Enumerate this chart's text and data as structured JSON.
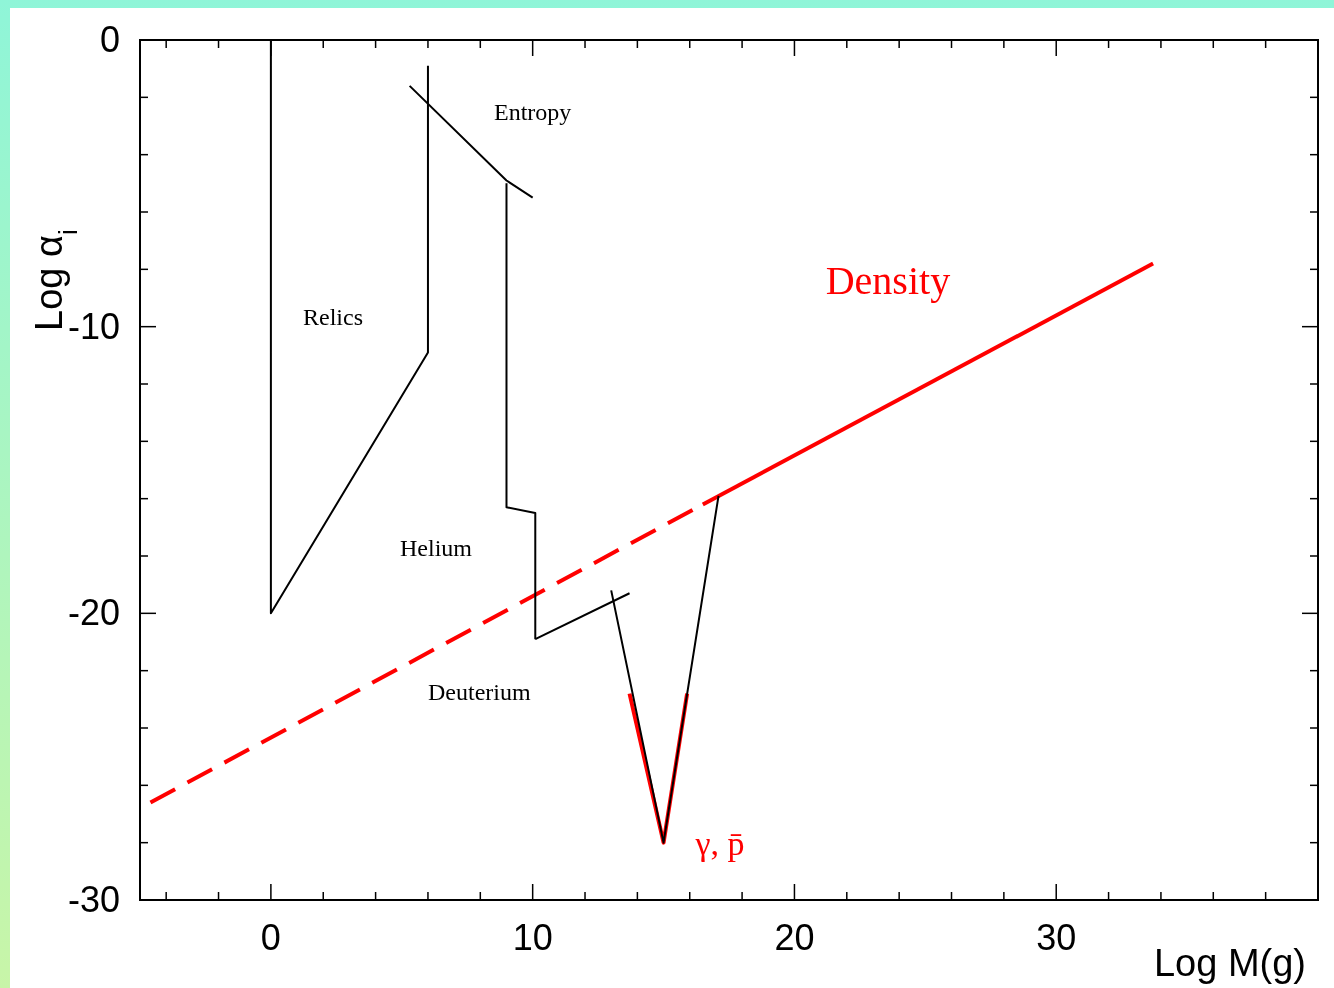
{
  "chart_data": {
    "type": "line",
    "xlabel": "Log M(g)",
    "ylabel": "Log α$_{i}$",
    "xlim": [
      -5,
      40
    ],
    "ylim": [
      -30,
      0
    ],
    "xticks": [
      {
        "value": -4,
        "label": null
      },
      {
        "value": -2,
        "label": null
      },
      0,
      {
        "value": 2,
        "label": null
      },
      {
        "value": 4,
        "label": null
      },
      {
        "value": 6,
        "label": null
      },
      {
        "value": 8,
        "label": null
      },
      10,
      {
        "value": 12,
        "label": null
      },
      {
        "value": 14,
        "label": null
      },
      {
        "value": 16,
        "label": null
      },
      {
        "value": 18,
        "label": null
      },
      20,
      {
        "value": 22,
        "label": null
      },
      {
        "value": 24,
        "label": null
      },
      {
        "value": 26,
        "label": null
      },
      {
        "value": 28,
        "label": null
      },
      30,
      {
        "value": 32,
        "label": null
      },
      {
        "value": 34,
        "label": null
      },
      {
        "value": 36,
        "label": null
      },
      {
        "value": 38,
        "label": null
      }
    ],
    "yticks": [
      0,
      {
        "value": -2,
        "label": null
      },
      {
        "value": -4,
        "label": null
      },
      {
        "value": -6,
        "label": null
      },
      {
        "value": -8,
        "label": null
      },
      -10,
      {
        "value": -12,
        "label": null
      },
      {
        "value": -14,
        "label": null
      },
      {
        "value": -16,
        "label": null
      },
      {
        "value": -18,
        "label": null
      },
      -20,
      {
        "value": -22,
        "label": null
      },
      {
        "value": -24,
        "label": null
      },
      {
        "value": -26,
        "label": null
      },
      {
        "value": -28,
        "label": null
      },
      -30
    ],
    "grid": false,
    "legend": false,
    "marker": "none",
    "series": [
      {
        "color": "#000000",
        "x": [
          0,
          0,
          6,
          6
        ],
        "values": [
          0,
          -20,
          -10.9,
          -0.9
        ]
      },
      {
        "color": "#000000",
        "x": [
          5.3,
          9,
          10
        ],
        "values": [
          -1.6,
          -4.9,
          -5.5
        ]
      },
      {
        "color": "#000000",
        "x": [
          9,
          9,
          10.1,
          10.1
        ],
        "values": [
          -5,
          -16.3,
          -16.5,
          -20.9
        ]
      },
      {
        "color": "#000000",
        "x": [
          10.1,
          13.7
        ],
        "values": [
          -20.9,
          -19.3
        ]
      },
      {
        "color": "#000000",
        "x": [
          13,
          15,
          17.1
        ],
        "values": [
          -19.2,
          -28,
          -15.9
        ]
      },
      {
        "name": "γ, p̄",
        "color": "#ff0000",
        "x": [
          13.7,
          15,
          15.9
        ],
        "values": [
          -22.8,
          -28,
          -22.8
        ]
      },
      {
        "name": "Density",
        "color": "#ff0000",
        "x": [
          16.5,
          33.7
        ],
        "values": [
          -16.2,
          -7.8
        ]
      },
      {
        "color": "#ff0000",
        "line_style": "dashed",
        "x": [
          -4.6,
          16.5
        ],
        "values": [
          -26.6,
          -16.2
        ]
      }
    ],
    "annotations": [
      "Relics",
      "Entropy",
      "Helium",
      "Deuterium"
    ]
  }
}
